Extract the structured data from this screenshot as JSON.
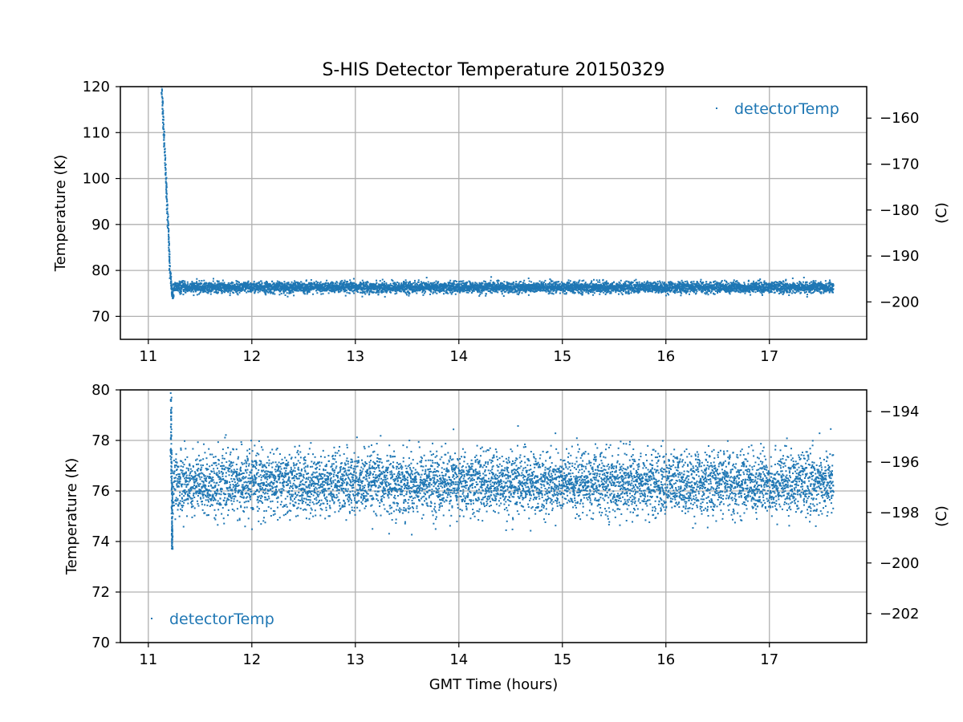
{
  "title": "S-HIS Detector Temperature 20150329",
  "series_color": "#1f77b4",
  "chart_data": [
    {
      "type": "scatter",
      "panel": "top",
      "title": "S-HIS Detector Temperature 20150329",
      "xlabel": "",
      "ylabel": "Temperature (K)",
      "y2label": "(C)",
      "xlim": [
        10.73,
        17.94
      ],
      "ylim": [
        65,
        120
      ],
      "y2lim": [
        -208.15,
        -153.15
      ],
      "xticks": [
        "11",
        "12",
        "13",
        "14",
        "15",
        "16",
        "17"
      ],
      "yticks": [
        "70",
        "80",
        "90",
        "100",
        "110",
        "120"
      ],
      "y2ticks": [
        "−200",
        "−190",
        "−180",
        "−170",
        "−160"
      ],
      "grid": true,
      "legend_position": "top-right",
      "series": [
        {
          "name": "detectorTemp",
          "marker": "point",
          "cooldown": {
            "x": [
              11.13,
              11.15,
              11.17,
              11.19,
              11.21,
              11.23,
              11.24
            ],
            "y": [
              120,
              110,
              100,
              90,
              80,
              75,
              74
            ]
          },
          "steady": {
            "x_start": 11.24,
            "x_end": 17.62,
            "mean": 76.3,
            "spread": 0.6,
            "y_min": 74.0,
            "y_max": 79.7
          }
        }
      ]
    },
    {
      "type": "scatter",
      "panel": "bottom",
      "title": "",
      "xlabel": "GMT Time (hours)",
      "ylabel": "Temperature (K)",
      "y2label": "(C)",
      "xlim": [
        10.73,
        17.94
      ],
      "ylim": [
        70,
        80
      ],
      "y2lim": [
        -203.15,
        -193.15
      ],
      "xticks": [
        "11",
        "12",
        "13",
        "14",
        "15",
        "16",
        "17"
      ],
      "yticks": [
        "70",
        "72",
        "74",
        "76",
        "78",
        "80"
      ],
      "y2ticks": [
        "−202",
        "−200",
        "−198",
        "−196",
        "−194"
      ],
      "grid": true,
      "legend_position": "lower-left",
      "series": [
        {
          "name": "detectorTemp",
          "marker": "point",
          "cooldown": {
            "x": [
              11.22,
              11.22,
              11.23,
              11.23,
              11.23
            ],
            "y": [
              79.8,
              77.5,
              76.0,
              74.5,
              73.8
            ]
          },
          "steady": {
            "x_start": 11.24,
            "x_end": 17.62,
            "mean": 76.3,
            "spread": 0.6,
            "y_min": 74.0,
            "y_max": 79.7
          }
        }
      ]
    }
  ]
}
